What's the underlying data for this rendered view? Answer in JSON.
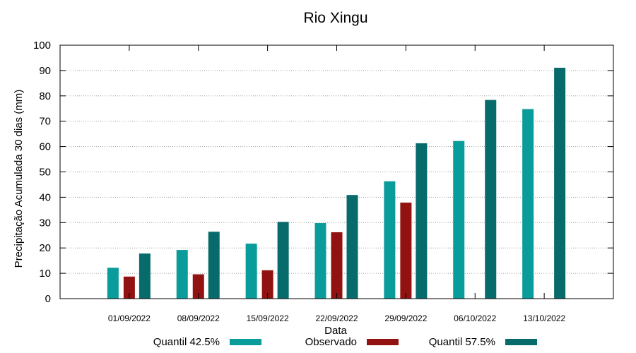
{
  "chart_data": {
    "type": "bar",
    "title": "Rio Xingu",
    "xlabel": "Data",
    "ylabel": "Precipitação Acumulada 30 dias (mm)",
    "ylim": [
      0,
      100
    ],
    "yticks": [
      0,
      10,
      20,
      30,
      40,
      50,
      60,
      70,
      80,
      90,
      100
    ],
    "grid": true,
    "legend_position": "bottom",
    "categories": [
      "01/09/2022",
      "08/09/2022",
      "15/09/2022",
      "22/09/2022",
      "29/09/2022",
      "06/10/2022",
      "13/10/2022"
    ],
    "series": [
      {
        "name": "Quantil 42.5%",
        "color": "#0a9b9b",
        "values": [
          12.2,
          19.2,
          21.7,
          29.8,
          46.3,
          62.2,
          74.8
        ]
      },
      {
        "name": "Observado",
        "color": "#921111",
        "values": [
          8.7,
          9.6,
          11.2,
          26.2,
          37.9,
          null,
          null
        ]
      },
      {
        "name": "Quantil 57.5%",
        "color": "#086b6b",
        "values": [
          17.8,
          26.4,
          30.3,
          40.9,
          61.3,
          78.4,
          91.1
        ]
      }
    ]
  }
}
